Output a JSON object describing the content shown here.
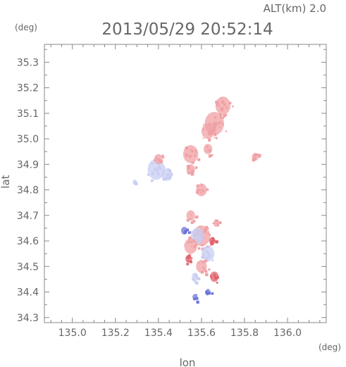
{
  "header": {
    "altitude_label": "ALT(km) 2.0",
    "timestamp": "2013/05/29 20:52:14",
    "y_unit": "(deg)",
    "x_unit": "(deg)"
  },
  "chart_data": {
    "type": "scatter",
    "title": "2013/05/29 20:52:14",
    "xlabel": "lon",
    "ylabel": "lat",
    "xlim": [
      134.87,
      136.18
    ],
    "ylim": [
      34.28,
      35.37
    ],
    "x_ticks": [
      135.0,
      135.2,
      135.4,
      135.6,
      135.8,
      136.0
    ],
    "x_tick_labels": [
      "135.0",
      "135.2",
      "135.4",
      "135.6",
      "135.8",
      "136.0"
    ],
    "y_ticks": [
      34.3,
      34.4,
      34.5,
      34.6,
      34.7,
      34.8,
      34.9,
      35.0,
      35.1,
      35.2,
      35.3
    ],
    "y_tick_labels": [
      "34.3",
      "34.4",
      "34.5",
      "34.6",
      "34.7",
      "34.8",
      "34.9",
      "35.0",
      "35.1",
      "35.2",
      "35.3"
    ],
    "minor_tick_step": 0.05,
    "grid": false,
    "colors": {
      "positive": "#f0a0a4",
      "positive_strong": "#e0606a",
      "negative": "#c8cdf2",
      "negative_strong": "#6e74d8",
      "axis": "#888888"
    },
    "regions": [
      {
        "lon": 135.7,
        "lat": 35.13,
        "r": 0.035,
        "sign": "positive"
      },
      {
        "lon": 135.66,
        "lat": 35.06,
        "r": 0.045,
        "sign": "positive"
      },
      {
        "lon": 135.63,
        "lat": 35.03,
        "r": 0.03,
        "sign": "positive"
      },
      {
        "lon": 135.55,
        "lat": 34.94,
        "r": 0.035,
        "sign": "positive"
      },
      {
        "lon": 135.55,
        "lat": 34.88,
        "r": 0.02,
        "sign": "positive"
      },
      {
        "lon": 135.63,
        "lat": 34.96,
        "r": 0.02,
        "sign": "positive"
      },
      {
        "lon": 135.85,
        "lat": 34.93,
        "r": 0.015,
        "sign": "positive"
      },
      {
        "lon": 135.39,
        "lat": 34.88,
        "r": 0.04,
        "sign": "negative"
      },
      {
        "lon": 135.44,
        "lat": 34.86,
        "r": 0.025,
        "sign": "negative"
      },
      {
        "lon": 135.4,
        "lat": 34.92,
        "r": 0.02,
        "sign": "positive"
      },
      {
        "lon": 135.6,
        "lat": 34.8,
        "r": 0.025,
        "sign": "positive"
      },
      {
        "lon": 135.55,
        "lat": 34.7,
        "r": 0.02,
        "sign": "positive"
      },
      {
        "lon": 135.6,
        "lat": 34.62,
        "r": 0.04,
        "sign": "positive"
      },
      {
        "lon": 135.58,
        "lat": 34.62,
        "r": 0.03,
        "sign": "negative"
      },
      {
        "lon": 135.55,
        "lat": 34.58,
        "r": 0.03,
        "sign": "positive"
      },
      {
        "lon": 135.63,
        "lat": 34.55,
        "r": 0.03,
        "sign": "negative"
      },
      {
        "lon": 135.6,
        "lat": 34.5,
        "r": 0.025,
        "sign": "positive"
      },
      {
        "lon": 135.66,
        "lat": 34.46,
        "r": 0.02,
        "sign": "positive_strong"
      },
      {
        "lon": 135.52,
        "lat": 34.64,
        "r": 0.015,
        "sign": "negative_strong"
      },
      {
        "lon": 135.65,
        "lat": 34.6,
        "r": 0.015,
        "sign": "positive_strong"
      },
      {
        "lon": 135.57,
        "lat": 34.46,
        "r": 0.015,
        "sign": "negative"
      },
      {
        "lon": 135.63,
        "lat": 34.4,
        "r": 0.012,
        "sign": "negative_strong"
      },
      {
        "lon": 135.57,
        "lat": 34.38,
        "r": 0.012,
        "sign": "negative_strong"
      },
      {
        "lon": 135.29,
        "lat": 34.83,
        "r": 0.01,
        "sign": "negative"
      },
      {
        "lon": 135.67,
        "lat": 34.67,
        "r": 0.015,
        "sign": "positive"
      },
      {
        "lon": 135.54,
        "lat": 34.53,
        "r": 0.015,
        "sign": "positive_strong"
      }
    ]
  }
}
